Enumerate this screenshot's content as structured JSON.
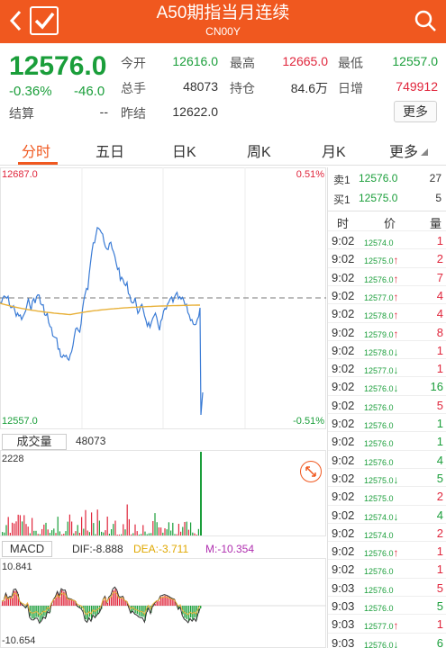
{
  "header": {
    "title": "A50期指当月连续",
    "code": "CN00Y",
    "back_icon": "chevron-left-icon",
    "check_icon": "checkbox-checked-icon",
    "search_icon": "search-icon"
  },
  "quote": {
    "price": "12576.0",
    "change_pct": "-0.36%",
    "change": "-46.0",
    "fields": [
      {
        "label": "今开",
        "value": "12616.0",
        "color": "g"
      },
      {
        "label": "最高",
        "value": "12665.0",
        "color": "r"
      },
      {
        "label": "最低",
        "value": "12557.0",
        "color": "g"
      },
      {
        "label": "总手",
        "value": "48073",
        "color": "k"
      },
      {
        "label": "持仓",
        "value": "84.6万",
        "color": "k"
      },
      {
        "label": "日增",
        "value": "749912",
        "color": "r"
      },
      {
        "label": "结算",
        "value": "--",
        "color": "k"
      },
      {
        "label": "昨结",
        "value": "12622.0",
        "color": "k"
      }
    ],
    "more_label": "更多"
  },
  "tabs": [
    "分时",
    "五日",
    "日K",
    "周K",
    "月K",
    "更多"
  ],
  "active_tab": 0,
  "chart_data": [
    {
      "type": "line",
      "y_left_max": "12687.0",
      "y_left_min": "12557.0",
      "y_right_max": "0.51%",
      "y_right_min": "-0.51%",
      "prev_settle": 12622.0,
      "ylim": [
        12557.0,
        12687.0
      ]
    },
    {
      "type": "bar",
      "title": "成交量",
      "total": "48073",
      "ymax_label": "2228"
    },
    {
      "type": "bar",
      "title": "MACD",
      "dif": "DIF:-8.888",
      "dea": "DEA:-3.711",
      "m": "M:-10.354",
      "ymax_label": "10.841",
      "ymin_label": "-10.654"
    }
  ],
  "orderbook": [
    {
      "label": "卖1",
      "price": "12576.0",
      "vol": "27"
    },
    {
      "label": "买1",
      "price": "12575.0",
      "vol": "5"
    }
  ],
  "trades_header": [
    "时",
    "价",
    "量"
  ],
  "trades": [
    {
      "t": "9:02",
      "p": "12574.0",
      "arrow": "",
      "v": "1",
      "pc": "g",
      "vc": "r"
    },
    {
      "t": "9:02",
      "p": "12575.0",
      "arrow": "↑",
      "v": "2",
      "pc": "g",
      "vc": "r"
    },
    {
      "t": "9:02",
      "p": "12576.0",
      "arrow": "↑",
      "v": "7",
      "pc": "g",
      "vc": "r"
    },
    {
      "t": "9:02",
      "p": "12577.0",
      "arrow": "↑",
      "v": "4",
      "pc": "g",
      "vc": "r"
    },
    {
      "t": "9:02",
      "p": "12578.0",
      "arrow": "↑",
      "v": "4",
      "pc": "g",
      "vc": "r"
    },
    {
      "t": "9:02",
      "p": "12579.0",
      "arrow": "↑",
      "v": "8",
      "pc": "g",
      "vc": "r"
    },
    {
      "t": "9:02",
      "p": "12578.0",
      "arrow": "↓",
      "v": "1",
      "pc": "g",
      "vc": "r"
    },
    {
      "t": "9:02",
      "p": "12577.0",
      "arrow": "↓",
      "v": "1",
      "pc": "g",
      "vc": "r"
    },
    {
      "t": "9:02",
      "p": "12576.0",
      "arrow": "↓",
      "v": "16",
      "pc": "g",
      "vc": "g"
    },
    {
      "t": "9:02",
      "p": "12576.0",
      "arrow": "",
      "v": "5",
      "pc": "g",
      "vc": "r"
    },
    {
      "t": "9:02",
      "p": "12576.0",
      "arrow": "",
      "v": "1",
      "pc": "g",
      "vc": "g"
    },
    {
      "t": "9:02",
      "p": "12576.0",
      "arrow": "",
      "v": "1",
      "pc": "g",
      "vc": "g"
    },
    {
      "t": "9:02",
      "p": "12576.0",
      "arrow": "",
      "v": "4",
      "pc": "g",
      "vc": "g"
    },
    {
      "t": "9:02",
      "p": "12575.0",
      "arrow": "↓",
      "v": "5",
      "pc": "g",
      "vc": "g"
    },
    {
      "t": "9:02",
      "p": "12575.0",
      "arrow": "",
      "v": "2",
      "pc": "g",
      "vc": "r"
    },
    {
      "t": "9:02",
      "p": "12574.0",
      "arrow": "↓",
      "v": "4",
      "pc": "g",
      "vc": "g"
    },
    {
      "t": "9:02",
      "p": "12574.0",
      "arrow": "",
      "v": "2",
      "pc": "g",
      "vc": "r"
    },
    {
      "t": "9:02",
      "p": "12576.0",
      "arrow": "↑",
      "v": "1",
      "pc": "g",
      "vc": "r"
    },
    {
      "t": "9:02",
      "p": "12576.0",
      "arrow": "",
      "v": "1",
      "pc": "g",
      "vc": "r"
    },
    {
      "t": "9:03",
      "p": "12576.0",
      "arrow": "",
      "v": "5",
      "pc": "g",
      "vc": "r"
    },
    {
      "t": "9:03",
      "p": "12576.0",
      "arrow": "",
      "v": "5",
      "pc": "g",
      "vc": "g"
    },
    {
      "t": "9:03",
      "p": "12577.0",
      "arrow": "↑",
      "v": "1",
      "pc": "g",
      "vc": "r"
    },
    {
      "t": "9:03",
      "p": "12576.0",
      "arrow": "↓",
      "v": "6",
      "pc": "g",
      "vc": "g"
    }
  ]
}
